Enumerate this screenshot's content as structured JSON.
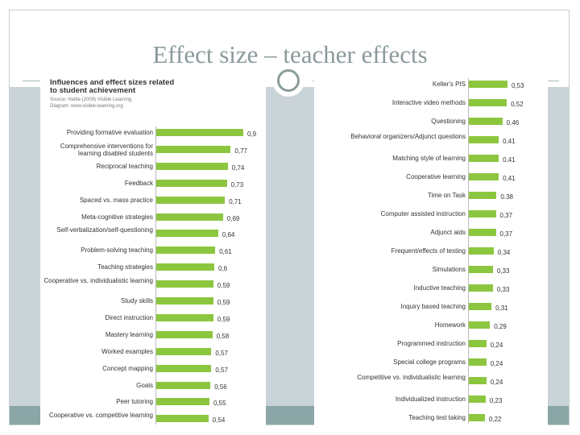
{
  "slide": {
    "title": "Effect size – teacher effects"
  },
  "chart_header": {
    "title_line1": "Influences and effect sizes related",
    "title_line2": "to student achievement",
    "source_line1": "Source: Hattie (2009) Visible Learning",
    "source_line2": "Diagram: www.visible-learning.org"
  },
  "colors": {
    "bar": "#8cc63f",
    "title": "#8a9a9c",
    "band": "#c9d3d8",
    "footer": "#8aa6a6"
  },
  "chart_data": [
    {
      "type": "bar",
      "orientation": "horizontal",
      "xlim": [
        0,
        1
      ],
      "categories": [
        "Providing formative evaluation",
        "Comprehensive interventions for learning disabled students",
        "Reciprocal teaching",
        "Feedback",
        "Spaced vs. mass practice",
        "Meta-cognitive strategies",
        "Self-verbalization/self-questioning",
        "Problem-solving teaching",
        "Teaching strategies",
        "Cooperative vs. individualistic learning",
        "Study skills",
        "Direct instruction",
        "Mastery learning",
        "Worked examples",
        "Concept mapping",
        "Goals",
        "Peer tutoring",
        "Cooperative vs. competitive learning"
      ],
      "values": [
        0.9,
        0.77,
        0.74,
        0.73,
        0.71,
        0.69,
        0.64,
        0.61,
        0.6,
        0.59,
        0.59,
        0.59,
        0.58,
        0.57,
        0.57,
        0.56,
        0.55,
        0.54
      ],
      "value_labels": [
        "0,9",
        "0,77",
        "0,74",
        "0,73",
        "0,71",
        "0,69",
        "0,64",
        "0,61",
        "0,6",
        "0,59",
        "0,59",
        "0,59",
        "0,58",
        "0,57",
        "0,57",
        "0,56",
        "0,55",
        "0,54"
      ]
    },
    {
      "type": "bar",
      "orientation": "horizontal",
      "xlim": [
        0,
        1
      ],
      "categories": [
        "Keller's PIS",
        "Interactive video methods",
        "Questioning",
        "Behavioral organizers/Adjunct questions",
        "Matching style of learning",
        "Cooperative learning",
        "Time on Task",
        "Computer assisted instruction",
        "Adjunct aids",
        "Frequent/effects of testing",
        "Simulations",
        "Inductive teaching",
        "Inquiry based teaching",
        "Homework",
        "Programmed instruction",
        "Special college programs",
        "Competitive vs. individualistic learning",
        "Individualized instruction",
        "Teaching test taking"
      ],
      "values": [
        0.53,
        0.52,
        0.46,
        0.41,
        0.41,
        0.41,
        0.38,
        0.37,
        0.37,
        0.34,
        0.33,
        0.33,
        0.31,
        0.29,
        0.24,
        0.24,
        0.24,
        0.23,
        0.22
      ],
      "value_labels": [
        "0,53",
        "0,52",
        "0.46",
        "0,41",
        "0,41",
        "0,41",
        "0.38",
        "0,37",
        "0,37",
        "0,34",
        "0,33",
        "0,33",
        "0,31",
        "0,29",
        "0,24",
        "0,24",
        "0,24",
        "0,23",
        "0,22"
      ]
    }
  ]
}
